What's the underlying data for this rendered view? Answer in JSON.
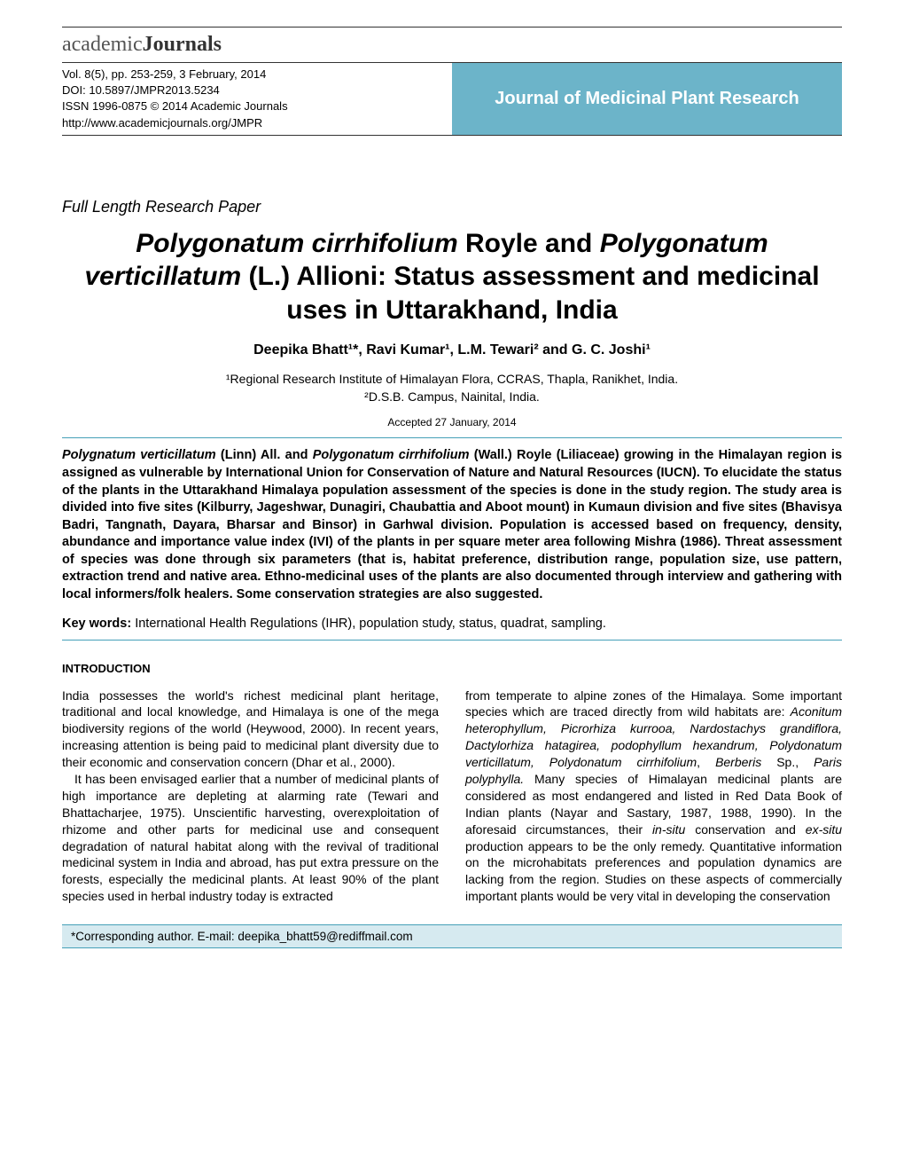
{
  "logo": {
    "part1": "academic",
    "part2": "Journals"
  },
  "header": {
    "citation": "Vol. 8(5), pp. 253-259, 3 February, 2014",
    "doi": "DOI: 10.5897/JMPR2013.5234",
    "issn": "ISSN 1996-0875 © 2014 Academic Journals",
    "url": "http://www.academicjournals.org/JMPR",
    "journal": "Journal of Medicinal Plant Research"
  },
  "paperType": "Full Length Research Paper",
  "title": {
    "sp1": "Polygonatum cirrhifolium",
    "mid1": " Royle and ",
    "sp2": "Polygonatum verticillatum",
    "mid2": " (L.) Allioni: Status assessment and medicinal uses in Uttarakhand, India"
  },
  "authors": "Deepika Bhatt¹*, Ravi Kumar¹, L.M. Tewari² and G. C. Joshi¹",
  "affiliations": {
    "a1": "¹Regional Research Institute of Himalayan Flora, CCRAS, Thapla, Ranikhet, India.",
    "a2": "²D.S.B. Campus, Nainital, India."
  },
  "accepted": "Accepted 27 January, 2014",
  "abstract": {
    "sp1": "Polygnatum verticillatum",
    "t1": " (Linn) All. and ",
    "sp2": "Polygonatum cirrhifolium",
    "t2": " (Wall.) Royle (Liliaceae) growing in the Himalayan region is assigned as vulnerable by International Union for Conservation of Nature and Natural Resources (IUCN). To elucidate the status of the plants in the Uttarakhand Himalaya population assessment of the species is done in the study region. The study area is divided into five sites (Kilburry, Jageshwar, Dunagiri, Chaubattia and Aboot mount) in Kumaun division and five sites (Bhavisya Badri, Tangnath, Dayara, Bharsar and Binsor) in Garhwal division. Population is accessed based on frequency, density, abundance and importance value index (IVI) of the plants in per square meter area following Mishra (1986). Threat assessment of species was done through six parameters (that is, habitat preference, distribution range, population size, use pattern, extraction trend and native area. Ethno-medicinal uses of the plants are also documented through interview and gathering with local informers/folk healers. Some conservation strategies are also suggested."
  },
  "keywords": {
    "label": "Key words:",
    "text": " International Health Regulations (IHR), population study, status, quadrat, sampling."
  },
  "introHead": "INTRODUCTION",
  "col1": {
    "p1": "India possesses the world's richest medicinal plant heritage, traditional and local knowledge, and Himalaya is one of the mega biodiversity regions of the world (Heywood, 2000). In recent years, increasing attention is being paid to medicinal plant diversity due to their economic and conservation concern (Dhar et al., 2000).",
    "p2": "It has been envisaged earlier that a number of medicinal plants of high importance are depleting at alarming rate (Tewari and Bhattacharjee, 1975). Unscientific harvesting, overexploitation of rhizome and other parts for medicinal use and consequent degradation of natural habitat along with the revival of traditional medicinal system in India and abroad, has put extra pressure on the forests, especially the medicinal plants. At least 90% of the plant species used in herbal  industry  today  is  extracted"
  },
  "col2": {
    "t1": "from temperate to alpine zones of the Himalaya. Some important species which are traced directly from wild habitats are: ",
    "sp": "Aconitum heterophyllum, Picrorhiza kurrooa, Nardostachys grandiflora, Dactylorhiza hatagirea, podophyllum hexandrum, Polydonatum verticillatum, Polydonatum cirrhifolium",
    "t2": ", ",
    "sp2": "Berberis",
    "t3": " Sp., ",
    "sp3": "Paris polyphylla.",
    "t4": " Many species of Himalayan medicinal plants are considered as most endangered and listed in Red Data Book of Indian plants (Nayar and Sastary, 1987, 1988, 1990). In the aforesaid circumstances, their ",
    "sp4": "in-situ",
    "t5": " conservation and ",
    "sp5": "ex-situ",
    "t6": " production appears to be the only remedy. Quantitative information on the microhabitats preferences and population dynamics are lacking from the region. Studies on these aspects of commercially important plants would be very vital in developing  the  conservation"
  },
  "footer": "*Corresponding author. E-mail: deepika_bhatt59@rediffmail.com",
  "colors": {
    "band": "#6cb4c9",
    "rule": "#45a0b8",
    "footerBg": "#d6eaf0"
  }
}
